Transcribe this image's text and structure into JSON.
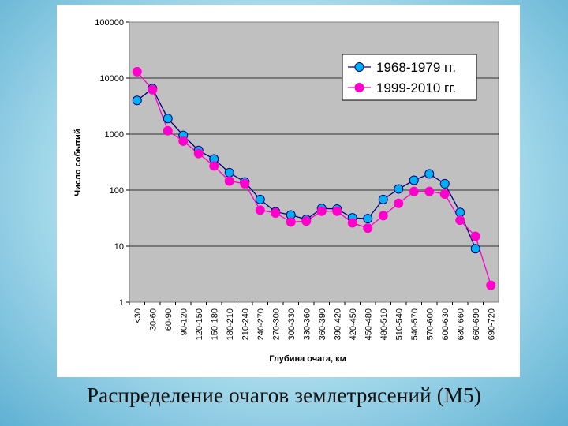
{
  "caption": "Распределение очагов землетрясений (М5)",
  "chart_data": {
    "type": "line",
    "title": "",
    "xlabel": "Глубина очага, км",
    "ylabel": "Число событий",
    "yscale": "log",
    "ylim": [
      1,
      100000
    ],
    "yticks": [
      "1",
      "10",
      "100",
      "1000",
      "10000",
      "100000"
    ],
    "grid": "horizontal",
    "legend_position": "top-right",
    "categories": [
      "<30",
      "30-60",
      "60-90",
      "90-120",
      "120-150",
      "150-180",
      "180-210",
      "210-240",
      "240-270",
      "270-300",
      "300-330",
      "330-360",
      "360-390",
      "390-420",
      "420-450",
      "450-480",
      "480-510",
      "510-540",
      "540-570",
      "570-600",
      "600-630",
      "630-660",
      "660-690",
      "690-720"
    ],
    "series": [
      {
        "name": "1968-1979 гг.",
        "color": "#00b0f0",
        "values": [
          4000,
          6500,
          1900,
          950,
          510,
          360,
          205,
          140,
          68,
          41,
          36,
          30,
          47,
          46,
          32,
          31,
          68,
          105,
          150,
          195,
          130,
          40,
          9,
          null
        ]
      },
      {
        "name": "1999-2010 гг.",
        "color": "#ff00cc",
        "values": [
          13000,
          6200,
          1150,
          750,
          450,
          270,
          145,
          130,
          44,
          39,
          27,
          28,
          42,
          42,
          26,
          21,
          35,
          58,
          95,
          95,
          85,
          29,
          15,
          2
        ]
      }
    ]
  }
}
